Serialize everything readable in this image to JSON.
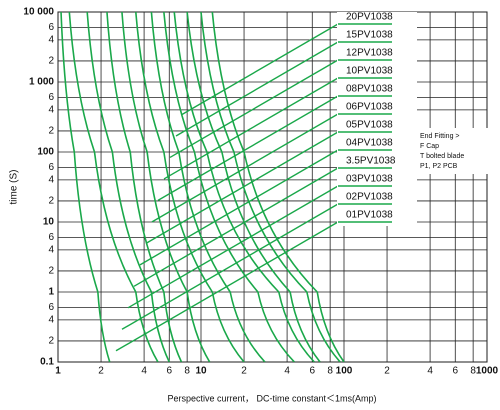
{
  "chart_data": {
    "type": "line",
    "xlabel": "Perspective current， DC-time constant＜1ms(Amp)",
    "ylabel": "time (S)",
    "xscale": "log",
    "yscale": "log",
    "grid": true,
    "xlim": [
      1,
      1000
    ],
    "ylim": [
      0.1,
      10000
    ],
    "xticks": [
      1,
      2,
      4,
      6,
      8,
      10,
      {
        "value": 20,
        "label": "2"
      },
      {
        "value": 40,
        "label": "4"
      },
      {
        "value": 60,
        "label": "6"
      },
      {
        "value": 80,
        "label": "8"
      },
      100,
      {
        "value": 200,
        "label": "2"
      },
      {
        "value": 400,
        "label": "4"
      },
      {
        "value": 600,
        "label": "6"
      },
      {
        "value": 800,
        "label": "8"
      },
      1000
    ],
    "yticks": [
      0.1,
      {
        "value": 0.2,
        "label": "2"
      },
      {
        "value": 0.4,
        "label": "4"
      },
      {
        "value": 0.6,
        "label": "6"
      },
      1,
      {
        "value": 2,
        "label": "2"
      },
      {
        "value": 4,
        "label": "4"
      },
      {
        "value": 6,
        "label": "6"
      },
      10,
      {
        "value": 20,
        "label": "2"
      },
      {
        "value": 40,
        "label": "4"
      },
      {
        "value": 60,
        "label": "6"
      },
      100,
      {
        "value": 200,
        "label": "2"
      },
      {
        "value": 400,
        "label": "4"
      },
      {
        "value": 600,
        "label": "6"
      },
      {
        "value": 1000,
        "label": "1 000"
      },
      {
        "value": 2000,
        "label": "2"
      },
      {
        "value": 4000,
        "label": "4"
      },
      {
        "value": 6000,
        "label": "6"
      },
      {
        "value": 10000,
        "label": "10 000"
      }
    ],
    "series": [
      {
        "name": "01PV1038",
        "color": "#1aa84a",
        "x": [
          1.05,
          1.3,
          1.9,
          2.3
        ],
        "values": [
          10000,
          100,
          1,
          0.1
        ]
      },
      {
        "name": "02PV1038",
        "color": "#1aa84a",
        "x": [
          1.2,
          1.8,
          3.5,
          5
        ],
        "values": [
          10000,
          100,
          1,
          0.1
        ]
      },
      {
        "name": "03PV1038",
        "color": "#1aa84a",
        "x": [
          1.6,
          2.4,
          4.5,
          6
        ],
        "values": [
          10000,
          100,
          1,
          0.1
        ]
      },
      {
        "name": "3.5PV1038",
        "color": "#1aa84a",
        "x": [
          2.2,
          3.2,
          5.5,
          7.3
        ],
        "values": [
          10000,
          100,
          1,
          0.1
        ]
      },
      {
        "name": "04PV1038",
        "color": "#1aa84a",
        "x": [
          2.8,
          4.2,
          8,
          11.5
        ],
        "values": [
          10000,
          100,
          1,
          0.1
        ]
      },
      {
        "name": "05PV1038",
        "color": "#1aa84a",
        "x": [
          3.5,
          5.5,
          12,
          20
        ],
        "values": [
          10000,
          100,
          1,
          0.1
        ]
      },
      {
        "name": "06PV1038",
        "color": "#1aa84a",
        "x": [
          4.5,
          7,
          16,
          28
        ],
        "values": [
          10000,
          100,
          1,
          0.1
        ]
      },
      {
        "name": "08PV1038",
        "color": "#1aa84a",
        "x": [
          5.5,
          9,
          25,
          45
        ],
        "values": [
          10000,
          100,
          1,
          0.1
        ]
      },
      {
        "name": "10PV1038",
        "color": "#1aa84a",
        "x": [
          6.5,
          11,
          35,
          62
        ],
        "values": [
          10000,
          100,
          1,
          0.1
        ]
      },
      {
        "name": "12PV1038",
        "color": "#1aa84a",
        "x": [
          8,
          14,
          42,
          68
        ],
        "values": [
          10000,
          100,
          1,
          0.1
        ]
      },
      {
        "name": "15PV1038",
        "color": "#1aa84a",
        "x": [
          10,
          17,
          55,
          94
        ],
        "values": [
          10000,
          100,
          1,
          0.1
        ]
      },
      {
        "name": "20PV1038",
        "color": "#1aa84a",
        "x": [
          12,
          20,
          65,
          100
        ],
        "values": [
          10000,
          100,
          1,
          0.1
        ]
      }
    ],
    "notes": [
      "End Fitting >",
      "F Cap",
      "T bolted blade",
      "P1, P2 PCB"
    ]
  }
}
